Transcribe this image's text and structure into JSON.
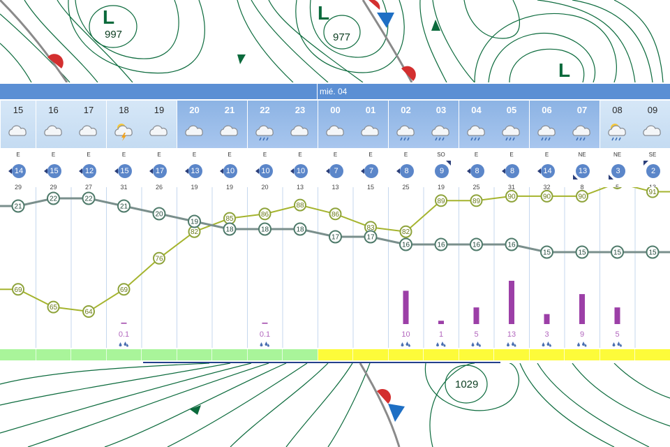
{
  "map": {
    "top_pressures": [
      "997",
      "977"
    ],
    "bottom_pressures": [
      "1029"
    ],
    "low_symbol": "L",
    "colors": {
      "isobar": "#0b6a3c",
      "front": "#8a8a8a",
      "warm_front": "#d32f2f",
      "cold_front": "#1e6fc4"
    }
  },
  "meteogram": {
    "date_label": "mié. 04",
    "hours": [
      {
        "label": "15",
        "night": false,
        "icon": "cloud-icon",
        "wind_dir": "E",
        "wind_speed": "14",
        "gust": "29",
        "temp": 21,
        "humidity": 69,
        "precip": 0,
        "precip_label": ""
      },
      {
        "label": "16",
        "night": false,
        "icon": "cloud-icon",
        "wind_dir": "E",
        "wind_speed": "15",
        "gust": "29",
        "temp": 22,
        "humidity": 65,
        "precip": 0,
        "precip_label": ""
      },
      {
        "label": "17",
        "night": false,
        "icon": "cloud-icon",
        "wind_dir": "E",
        "wind_speed": "12",
        "gust": "27",
        "temp": 22,
        "humidity": 64,
        "precip": 0,
        "precip_label": ""
      },
      {
        "label": "18",
        "night": false,
        "icon": "thunderstorm-icon",
        "wind_dir": "E",
        "wind_speed": "15",
        "gust": "31",
        "temp": 21,
        "humidity": 69,
        "precip": 0.1,
        "precip_label": "0.1"
      },
      {
        "label": "19",
        "night": false,
        "icon": "cloud-icon",
        "wind_dir": "E",
        "wind_speed": "17",
        "gust": "26",
        "temp": 20,
        "humidity": 76,
        "precip": 0,
        "precip_label": ""
      },
      {
        "label": "20",
        "night": true,
        "icon": "cloud-icon",
        "wind_dir": "E",
        "wind_speed": "13",
        "gust": "19",
        "temp": 19,
        "humidity": 82,
        "precip": 0,
        "precip_label": ""
      },
      {
        "label": "21",
        "night": true,
        "icon": "cloud-icon",
        "wind_dir": "E",
        "wind_speed": "10",
        "gust": "19",
        "temp": 18,
        "humidity": 85,
        "precip": 0,
        "precip_label": ""
      },
      {
        "label": "22",
        "night": true,
        "icon": "rain-cloud-icon",
        "wind_dir": "E",
        "wind_speed": "10",
        "gust": "20",
        "temp": 18,
        "humidity": 86,
        "precip": 0.1,
        "precip_label": "0.1"
      },
      {
        "label": "23",
        "night": true,
        "icon": "cloud-icon",
        "wind_dir": "E",
        "wind_speed": "10",
        "gust": "13",
        "temp": 18,
        "humidity": 88,
        "precip": 0,
        "precip_label": ""
      },
      {
        "label": "00",
        "night": true,
        "icon": "cloud-icon",
        "wind_dir": "E",
        "wind_speed": "7",
        "gust": "13",
        "temp": 17,
        "humidity": 86,
        "precip": 0,
        "precip_label": ""
      },
      {
        "label": "01",
        "night": true,
        "icon": "cloud-icon",
        "wind_dir": "E",
        "wind_speed": "7",
        "gust": "15",
        "temp": 17,
        "humidity": 83,
        "precip": 0,
        "precip_label": ""
      },
      {
        "label": "02",
        "night": true,
        "icon": "rain-cloud-icon",
        "wind_dir": "E",
        "wind_speed": "8",
        "gust": "25",
        "temp": 16,
        "humidity": 82,
        "precip": 10,
        "precip_label": "10"
      },
      {
        "label": "03",
        "night": true,
        "icon": "rain-cloud-icon",
        "wind_dir": "SO",
        "wind_speed": "9",
        "gust": "19",
        "temp": 16,
        "humidity": 89,
        "precip": 1,
        "precip_label": "1"
      },
      {
        "label": "04",
        "night": true,
        "icon": "rain-cloud-icon",
        "wind_dir": "E",
        "wind_speed": "8",
        "gust": "25",
        "temp": 16,
        "humidity": 89,
        "precip": 5,
        "precip_label": "5"
      },
      {
        "label": "05",
        "night": true,
        "icon": "rain-cloud-icon",
        "wind_dir": "E",
        "wind_speed": "8",
        "gust": "31",
        "temp": 16,
        "humidity": 90,
        "precip": 13,
        "precip_label": "13"
      },
      {
        "label": "06",
        "night": true,
        "icon": "rain-cloud-icon",
        "wind_dir": "E",
        "wind_speed": "14",
        "gust": "32",
        "temp": 15,
        "humidity": 90,
        "precip": 3,
        "precip_label": "3"
      },
      {
        "label": "07",
        "night": true,
        "icon": "rain-cloud-icon",
        "wind_dir": "NE",
        "wind_speed": "13",
        "gust": "8",
        "temp": 15,
        "humidity": 90,
        "precip": 9,
        "precip_label": "9"
      },
      {
        "label": "08",
        "night": false,
        "icon": "sun-rain-icon",
        "wind_dir": "NE",
        "wind_speed": "3",
        "gust": "5",
        "temp": 15,
        "humidity": 93,
        "precip": 5,
        "precip_label": "5"
      },
      {
        "label": "09",
        "night": false,
        "icon": "cloud-icon",
        "wind_dir": "SE",
        "wind_speed": "2",
        "gust": "13",
        "temp": 15,
        "humidity": 91,
        "precip": 0,
        "precip_label": ""
      }
    ],
    "colors": {
      "header": "#5b8fd4",
      "wind_badge": "#5b86c9",
      "temp_line": "#7a8f8c",
      "humidity_line": "#a5b42e",
      "precip_bar": "#9c3fa7",
      "band_green": "#a9f59a",
      "band_yellow": "#fdfb3a"
    },
    "band_colors": [
      "green",
      "green",
      "green",
      "green",
      "green",
      "green",
      "green",
      "green",
      "green",
      "yellow",
      "yellow",
      "yellow",
      "yellow",
      "yellow",
      "yellow",
      "yellow",
      "yellow",
      "yellow",
      "yellow"
    ]
  }
}
